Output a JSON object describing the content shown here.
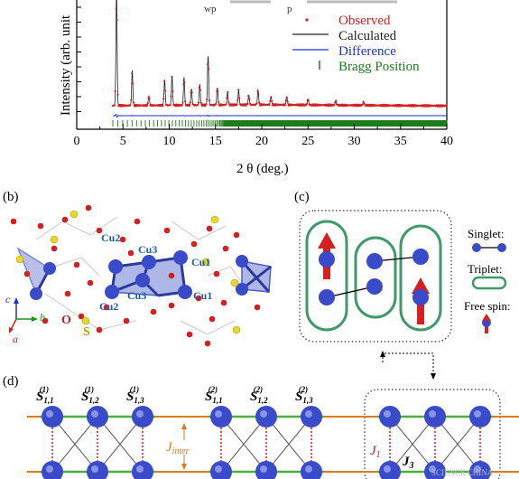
{
  "panel_a": {
    "ylabel": "Intensity (arb. unit",
    "top_fragment_1": "wp",
    "top_fragment_2": "p",
    "xlabel": "2 θ (deg.)",
    "x_ticks": [
      "0",
      "5",
      "10",
      "15",
      "20",
      "25",
      "30",
      "35",
      "40"
    ],
    "legend": {
      "observed": "Observed",
      "calculated": "Calculated",
      "difference": "Difference",
      "bragg": "Bragg Position"
    },
    "colors": {
      "observed": "#d42020",
      "calculated": "#222222",
      "difference": "#1a33d6",
      "bragg": "#1a7a1a"
    }
  },
  "chart_data": {
    "type": "line",
    "xlabel": "2 θ (deg.)",
    "ylabel": "Intensity (arb. unit",
    "xlim": [
      0,
      40
    ],
    "peaks": [
      {
        "x": 4.3,
        "h": 1.0
      },
      {
        "x": 6.0,
        "h": 0.3
      },
      {
        "x": 7.8,
        "h": 0.08
      },
      {
        "x": 9.5,
        "h": 0.22
      },
      {
        "x": 10.3,
        "h": 0.25
      },
      {
        "x": 11.6,
        "h": 0.24
      },
      {
        "x": 12.4,
        "h": 0.14
      },
      {
        "x": 13.3,
        "h": 0.18
      },
      {
        "x": 14.2,
        "h": 0.42
      },
      {
        "x": 15.2,
        "h": 0.15
      },
      {
        "x": 16.3,
        "h": 0.11
      },
      {
        "x": 17.5,
        "h": 0.13
      },
      {
        "x": 18.6,
        "h": 0.08
      },
      {
        "x": 19.6,
        "h": 0.13
      },
      {
        "x": 21.0,
        "h": 0.07
      },
      {
        "x": 22.7,
        "h": 0.07
      },
      {
        "x": 25.0,
        "h": 0.05
      },
      {
        "x": 28.0,
        "h": 0.04
      },
      {
        "x": 31.0,
        "h": 0.03
      }
    ],
    "bragg_start": 3.9,
    "bragg_end": 40
  },
  "panel_b": {
    "label": "(b)",
    "atoms": [
      "Cu2",
      "Cu3",
      "Cu1",
      "Cu3",
      "Cu1",
      "Cu2"
    ],
    "o_label": "O",
    "s_label": "S",
    "axes": {
      "c": "c",
      "b": "b",
      "a": "a"
    }
  },
  "panel_c": {
    "label": "(c)",
    "legend_singlet": "Singlet:",
    "legend_triplet": "Triplet:",
    "legend_free": "Free spin:"
  },
  "panel_d": {
    "label": "(d)",
    "spins": [
      {
        "sub": "1,1",
        "sup": "(1)"
      },
      {
        "sub": "1,2",
        "sup": "(1)"
      },
      {
        "sub": "1,3",
        "sup": "(1)"
      },
      {
        "sub": "1,1",
        "sup": "(2)"
      },
      {
        "sub": "1,2",
        "sup": "(2)"
      },
      {
        "sub": "1,3",
        "sup": "(2)"
      }
    ],
    "spin_letter": "S",
    "j_inter": "J",
    "j_inter_sub": "inter",
    "j1": "J",
    "j1_sub": "1",
    "j3": "J",
    "j3_sub": "3",
    "watermark": "SCIENCE CHINA"
  }
}
